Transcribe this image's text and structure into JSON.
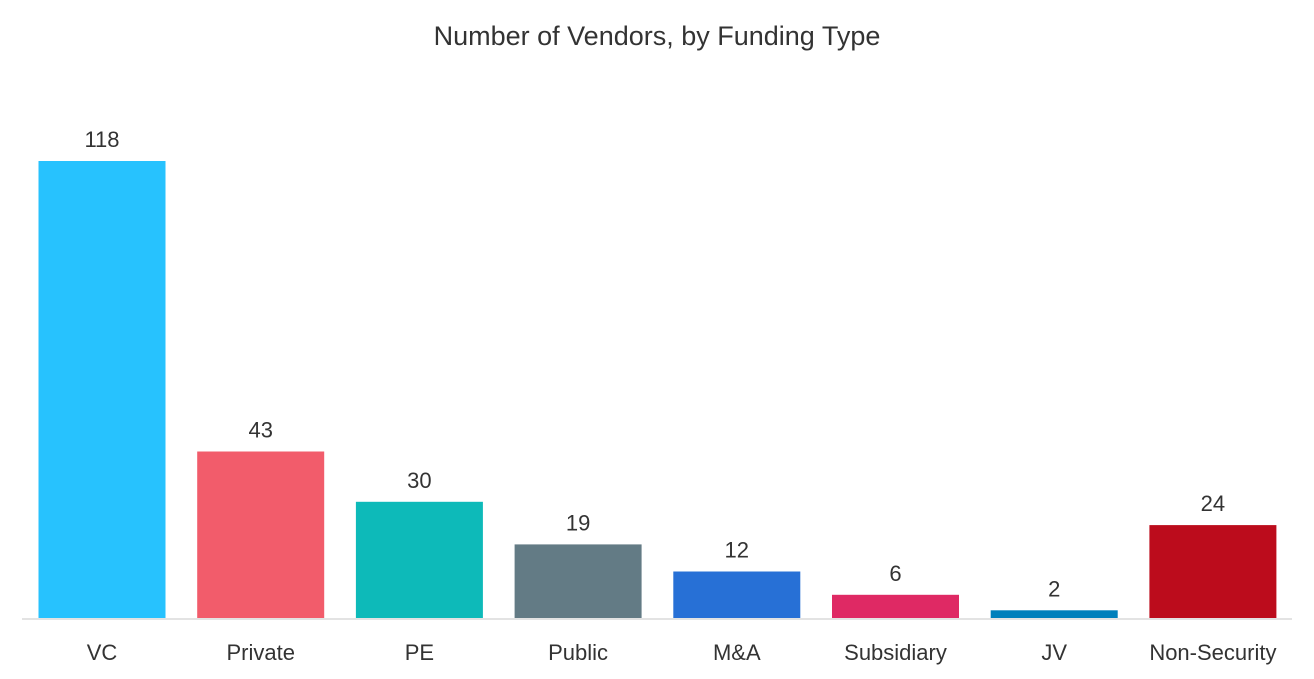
{
  "chart_data": {
    "type": "bar",
    "title": "Number of Vendors, by Funding Type",
    "xlabel": "",
    "ylabel": "",
    "ylim": [
      0,
      118
    ],
    "grid": false,
    "legend": "none",
    "categories": [
      "VC",
      "Private",
      "PE",
      "Public",
      "M&A",
      "Subsidiary",
      "JV",
      "Non-Security"
    ],
    "values": [
      118,
      43,
      30,
      19,
      12,
      6,
      2,
      24
    ],
    "value_labels": [
      "118",
      "43",
      "30",
      "19",
      "12",
      "6",
      "2",
      "24"
    ],
    "colors": [
      "#27C2FE",
      "#F25C6B",
      "#0DBAB9",
      "#637B85",
      "#2770D6",
      "#DF2964",
      "#0080BC",
      "#BC0C1C"
    ]
  },
  "styles": {
    "axis_line_color": "#E3E3E3",
    "text_color": "#333333"
  }
}
